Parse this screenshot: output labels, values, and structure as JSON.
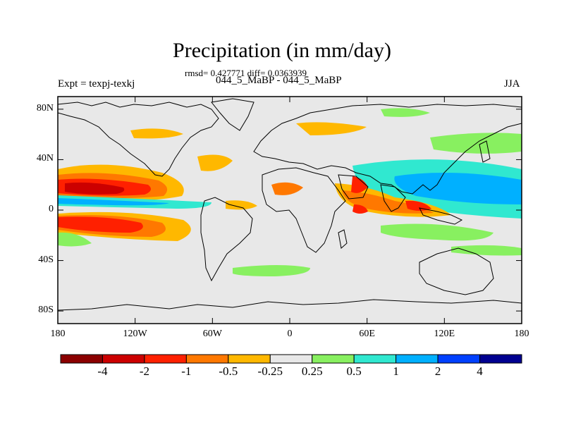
{
  "title": "Precipitation (in mm/day)",
  "stats": "rmsd= 0.427771 diff= 0.0363939",
  "subtitle": "044_5_MaBP - 044_5_MaBP",
  "experiment": "Expt = texpj-texkj",
  "season": "JJA",
  "y_axis": {
    "ticks": [
      {
        "value": 80,
        "label": "80N"
      },
      {
        "value": 40,
        "label": "40N"
      },
      {
        "value": 0,
        "label": "0"
      },
      {
        "value": -40,
        "label": "40S"
      },
      {
        "value": -80,
        "label": "80S"
      }
    ]
  },
  "x_axis": {
    "ticks": [
      {
        "value": 180,
        "label": "180"
      },
      {
        "value": 240,
        "label": "120W"
      },
      {
        "value": 300,
        "label": "60W"
      },
      {
        "value": 360,
        "label": "0"
      },
      {
        "value": 420,
        "label": "60E"
      },
      {
        "value": 480,
        "label": "120E"
      },
      {
        "value": 540,
        "label": "180"
      }
    ]
  },
  "colorbar": {
    "colors": [
      "#8b0000",
      "#cc0000",
      "#ff2000",
      "#ff7800",
      "#ffb800",
      "#e8e8e8",
      "#88f060",
      "#30e8d0",
      "#00b0ff",
      "#0040ff",
      "#000090"
    ],
    "labels": [
      "-4",
      "-2",
      "-1",
      "-0.5",
      "-0.25",
      "0.25",
      "0.5",
      "1",
      "2",
      "4"
    ]
  },
  "chart_data": {
    "type": "heatmap",
    "title": "Precipitation (in mm/day)",
    "units": "mm/day",
    "lon_range": [
      180,
      540
    ],
    "lat_range": [
      -90,
      90
    ],
    "levels": [
      -4,
      -2,
      -1,
      -0.5,
      -0.25,
      0.25,
      0.5,
      1,
      2,
      4
    ],
    "features": [
      {
        "name": "central Pacific north ITCZ dry anomaly",
        "lon": [
          180,
          265
        ],
        "lat": [
          4,
          28
        ],
        "max_value": -4
      },
      {
        "name": "Pacific equatorial wet band",
        "lon": [
          180,
          250
        ],
        "lat": [
          2,
          8
        ],
        "max_value": 2
      },
      {
        "name": "Pacific south of equator dry anomaly",
        "lon": [
          180,
          265
        ],
        "lat": [
          -22,
          -2
        ],
        "max_value": -2
      },
      {
        "name": "Indian Ocean dry anomaly",
        "lon": [
          410,
          480
        ],
        "lat": [
          -10,
          20
        ],
        "max_value": -2
      },
      {
        "name": "Western Pacific wet anomaly",
        "lon": [
          470,
          540
        ],
        "lat": [
          0,
          30
        ],
        "max_value": 2
      },
      {
        "name": "Arabian Sea dry anomaly",
        "lon": [
          395,
          425
        ],
        "lat": [
          10,
          25
        ],
        "max_value": -2
      },
      {
        "name": "Southern Ocean wet band",
        "lon": [
          330,
          430
        ],
        "lat": [
          -45,
          -38
        ],
        "max_value": 0.5
      }
    ]
  }
}
